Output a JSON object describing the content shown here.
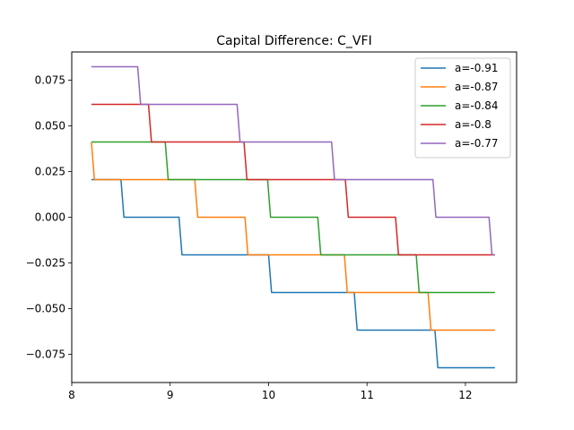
{
  "chart_data": {
    "type": "line",
    "title": "Capital Difference: C_VFI",
    "xlabel": "",
    "ylabel": "",
    "xlim": [
      8.0,
      12.52
    ],
    "ylim": [
      -0.0905,
      0.0905
    ],
    "xticks": [
      8,
      9,
      10,
      11,
      12
    ],
    "yticks": [
      -0.075,
      -0.05,
      -0.025,
      0.0,
      0.025,
      0.05,
      0.075
    ],
    "ytick_labels": [
      "−0.075",
      "−0.050",
      "−0.025",
      "0.000",
      "0.025",
      "0.050",
      "0.075"
    ],
    "grid": false,
    "legend_position": "top-right",
    "series": [
      {
        "name": "a=-0.91",
        "color": "#1f77b4",
        "points": [
          [
            8.2,
            0.0206
          ],
          [
            8.5,
            0.0206
          ],
          [
            8.53,
            0.0
          ],
          [
            9.09,
            0.0
          ],
          [
            9.12,
            -0.0206
          ],
          [
            10.0,
            -0.0206
          ],
          [
            10.03,
            -0.0412
          ],
          [
            10.87,
            -0.0412
          ],
          [
            10.9,
            -0.0618
          ],
          [
            11.69,
            -0.0618
          ],
          [
            11.72,
            -0.0824
          ],
          [
            12.3,
            -0.0824
          ]
        ]
      },
      {
        "name": "a=-0.87",
        "color": "#ff7f0e",
        "points": [
          [
            8.2,
            0.0412
          ],
          [
            8.23,
            0.0206
          ],
          [
            9.25,
            0.0206
          ],
          [
            9.28,
            0.0
          ],
          [
            9.76,
            0.0
          ],
          [
            9.79,
            -0.0206
          ],
          [
            10.77,
            -0.0206
          ],
          [
            10.8,
            -0.0412
          ],
          [
            11.62,
            -0.0412
          ],
          [
            11.65,
            -0.0618
          ],
          [
            12.3,
            -0.0618
          ]
        ]
      },
      {
        "name": "a=-0.84",
        "color": "#2ca02c",
        "points": [
          [
            8.2,
            0.0412
          ],
          [
            8.95,
            0.0412
          ],
          [
            8.98,
            0.0206
          ],
          [
            9.99,
            0.0206
          ],
          [
            10.02,
            0.0
          ],
          [
            10.5,
            0.0
          ],
          [
            10.53,
            -0.0206
          ],
          [
            11.5,
            -0.0206
          ],
          [
            11.53,
            -0.0412
          ],
          [
            12.3,
            -0.0412
          ]
        ]
      },
      {
        "name": "a=-0.8",
        "color": "#d62728",
        "points": [
          [
            8.2,
            0.0618
          ],
          [
            8.78,
            0.0618
          ],
          [
            8.81,
            0.0412
          ],
          [
            9.75,
            0.0412
          ],
          [
            9.78,
            0.0206
          ],
          [
            10.78,
            0.0206
          ],
          [
            10.81,
            0.0
          ],
          [
            11.29,
            0.0
          ],
          [
            11.32,
            -0.0206
          ],
          [
            12.3,
            -0.0206
          ]
        ]
      },
      {
        "name": "a=-0.77",
        "color": "#9467bd",
        "points": [
          [
            8.2,
            0.0824
          ],
          [
            8.67,
            0.0824
          ],
          [
            8.7,
            0.0618
          ],
          [
            9.68,
            0.0618
          ],
          [
            9.71,
            0.0412
          ],
          [
            10.64,
            0.0412
          ],
          [
            10.67,
            0.0206
          ],
          [
            11.67,
            0.0206
          ],
          [
            11.7,
            0.0
          ],
          [
            12.24,
            0.0
          ],
          [
            12.27,
            -0.0206
          ],
          [
            12.3,
            -0.0206
          ]
        ]
      }
    ]
  }
}
